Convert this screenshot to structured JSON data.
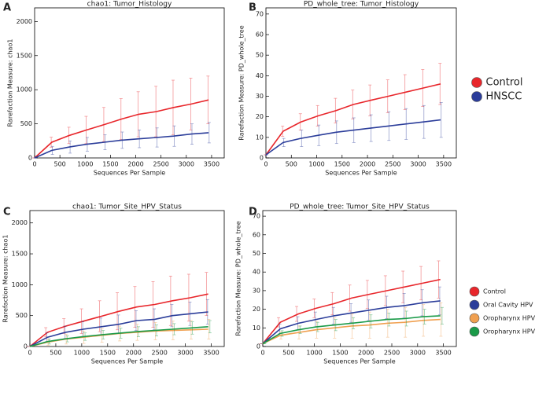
{
  "chart_data": [
    {
      "type": "line",
      "panel": "A",
      "title": "chao1: Tumor_Histology",
      "x_label": "Sequences Per Sample",
      "y_label": "Rarefaction Measure: chao1",
      "x": [
        0,
        340,
        690,
        1030,
        1380,
        1720,
        2060,
        2410,
        2750,
        3100,
        3440
      ],
      "xlim": [
        0,
        3750
      ],
      "xticks": [
        0,
        500,
        1000,
        1500,
        2000,
        2500,
        3000,
        3500
      ],
      "ylim": [
        0,
        2200
      ],
      "yticks": [
        0,
        500,
        1000,
        1500,
        2000
      ],
      "series": [
        {
          "color": "#e8262b",
          "values": [
            0,
            230,
            330,
            410,
            490,
            570,
            640,
            680,
            740,
            790,
            850
          ],
          "errors": [
            0,
            75,
            120,
            200,
            250,
            300,
            330,
            370,
            400,
            380,
            350
          ]
        },
        {
          "color": "#2b3d9a",
          "values": [
            0,
            110,
            160,
            200,
            230,
            260,
            280,
            300,
            320,
            350,
            370
          ],
          "errors": [
            0,
            60,
            90,
            100,
            110,
            120,
            130,
            140,
            150,
            150,
            150
          ]
        }
      ]
    },
    {
      "type": "line",
      "panel": "B",
      "title": "PD_whole_tree: Tumor_Histology",
      "x_label": "Sequences Per Sample",
      "y_label": "Rarefaction Measure: PD_whole_tree",
      "x": [
        0,
        340,
        690,
        1030,
        1380,
        1720,
        2060,
        2410,
        2750,
        3100,
        3440
      ],
      "xlim": [
        0,
        3750
      ],
      "xticks": [
        0,
        500,
        1000,
        1500,
        2000,
        2500,
        3000,
        3500
      ],
      "ylim": [
        0,
        73
      ],
      "yticks": [
        0,
        10,
        20,
        30,
        40,
        50,
        60,
        70
      ],
      "legend": "right",
      "series": [
        {
          "name": "Control",
          "color": "#e8262b",
          "values": [
            1.5,
            13,
            17.5,
            20.5,
            23,
            26,
            28,
            30,
            32,
            34,
            36
          ],
          "errors": [
            0,
            2.5,
            4,
            5,
            6,
            7,
            7.5,
            8,
            8.5,
            9,
            10
          ]
        },
        {
          "name": "HNSCC",
          "color": "#2b3d9a",
          "values": [
            1.5,
            7.5,
            9.5,
            11,
            12.5,
            13.5,
            14.5,
            15.5,
            16.5,
            17.5,
            18.5
          ],
          "errors": [
            0,
            2,
            4,
            5,
            5.5,
            6,
            6.5,
            7,
            7.5,
            8,
            8.5
          ]
        }
      ]
    },
    {
      "type": "line",
      "panel": "C",
      "title": "chao1: Tumor_Site_HPV_Status",
      "x_label": "Sequences Per Sample",
      "y_label": "Rarefaction Measure: chao1",
      "x": [
        0,
        340,
        690,
        1030,
        1380,
        1720,
        2060,
        2410,
        2750,
        3100,
        3440
      ],
      "xlim": [
        0,
        3750
      ],
      "xticks": [
        0,
        500,
        1000,
        1500,
        2000,
        2500,
        3000,
        3500
      ],
      "ylim": [
        0,
        2200
      ],
      "yticks": [
        0,
        500,
        1000,
        1500,
        2000
      ],
      "series": [
        {
          "color": "#e8262b",
          "values": [
            0,
            230,
            330,
            410,
            490,
            570,
            640,
            680,
            740,
            790,
            850
          ],
          "errors": [
            0,
            75,
            120,
            200,
            250,
            300,
            330,
            370,
            400,
            380,
            350
          ]
        },
        {
          "color": "#2b3d9a",
          "values": [
            0,
            150,
            230,
            280,
            320,
            360,
            420,
            440,
            500,
            530,
            560
          ],
          "errors": [
            0,
            70,
            100,
            120,
            140,
            150,
            160,
            170,
            180,
            190,
            200
          ]
        },
        {
          "color": "#f0a050",
          "values": [
            0,
            70,
            120,
            150,
            180,
            210,
            230,
            250,
            260,
            270,
            280
          ],
          "errors": [
            0,
            50,
            80,
            100,
            110,
            120,
            130,
            140,
            150,
            150,
            160
          ]
        },
        {
          "color": "#1a9a48",
          "values": [
            0,
            80,
            125,
            160,
            190,
            215,
            240,
            260,
            280,
            300,
            320
          ],
          "errors": [
            0,
            40,
            50,
            60,
            70,
            80,
            80,
            90,
            90,
            100,
            100
          ]
        }
      ]
    },
    {
      "type": "line",
      "panel": "D",
      "title": "PD_whole_tree: Tumor_Site_HPV_Status",
      "x_label": "Sequences Per Sample",
      "y_label": "Rarefaction Measure: PD_whole_tree",
      "x": [
        0,
        340,
        690,
        1030,
        1380,
        1720,
        2060,
        2410,
        2750,
        3100,
        3440
      ],
      "xlim": [
        0,
        3750
      ],
      "xticks": [
        0,
        500,
        1000,
        1500,
        2000,
        2500,
        3000,
        3500
      ],
      "ylim": [
        0,
        73
      ],
      "yticks": [
        0,
        10,
        20,
        30,
        40,
        50,
        60,
        70
      ],
      "legend": "right",
      "series": [
        {
          "name": "Control",
          "color": "#e8262b",
          "values": [
            1.5,
            13,
            17.5,
            20.5,
            23,
            26,
            28,
            30,
            32,
            34,
            36
          ],
          "errors": [
            0,
            2.5,
            4,
            5,
            6,
            7,
            7.5,
            8,
            8.5,
            9,
            10
          ]
        },
        {
          "name": "Oral Cavity HPV (-)",
          "color": "#2b3d9a",
          "values": [
            1.5,
            9.5,
            12.5,
            14.5,
            16.5,
            18,
            19.5,
            21,
            22,
            23.5,
            24.5
          ],
          "errors": [
            0,
            2.5,
            3.5,
            4,
            4.5,
            5,
            5.5,
            6,
            6.5,
            7,
            7.5
          ]
        },
        {
          "name": "Oropharynx HPV (-)",
          "color": "#f0a050",
          "values": [
            1.5,
            6,
            7.5,
            9,
            10,
            11,
            11.5,
            12.5,
            13,
            14,
            14.5
          ],
          "errors": [
            0,
            2,
            3.5,
            4.5,
            5.5,
            6.5,
            7,
            7.5,
            8,
            8.5,
            9
          ]
        },
        {
          "name": "Oropharynx HPV (+)",
          "color": "#1a9a48",
          "values": [
            1.5,
            7,
            9,
            10.5,
            11.5,
            12.5,
            13.5,
            14.5,
            15,
            16,
            16.5
          ],
          "errors": [
            0,
            1.5,
            2,
            2.5,
            3,
            3,
            3.5,
            3.5,
            4,
            4,
            4.5
          ]
        }
      ]
    }
  ]
}
